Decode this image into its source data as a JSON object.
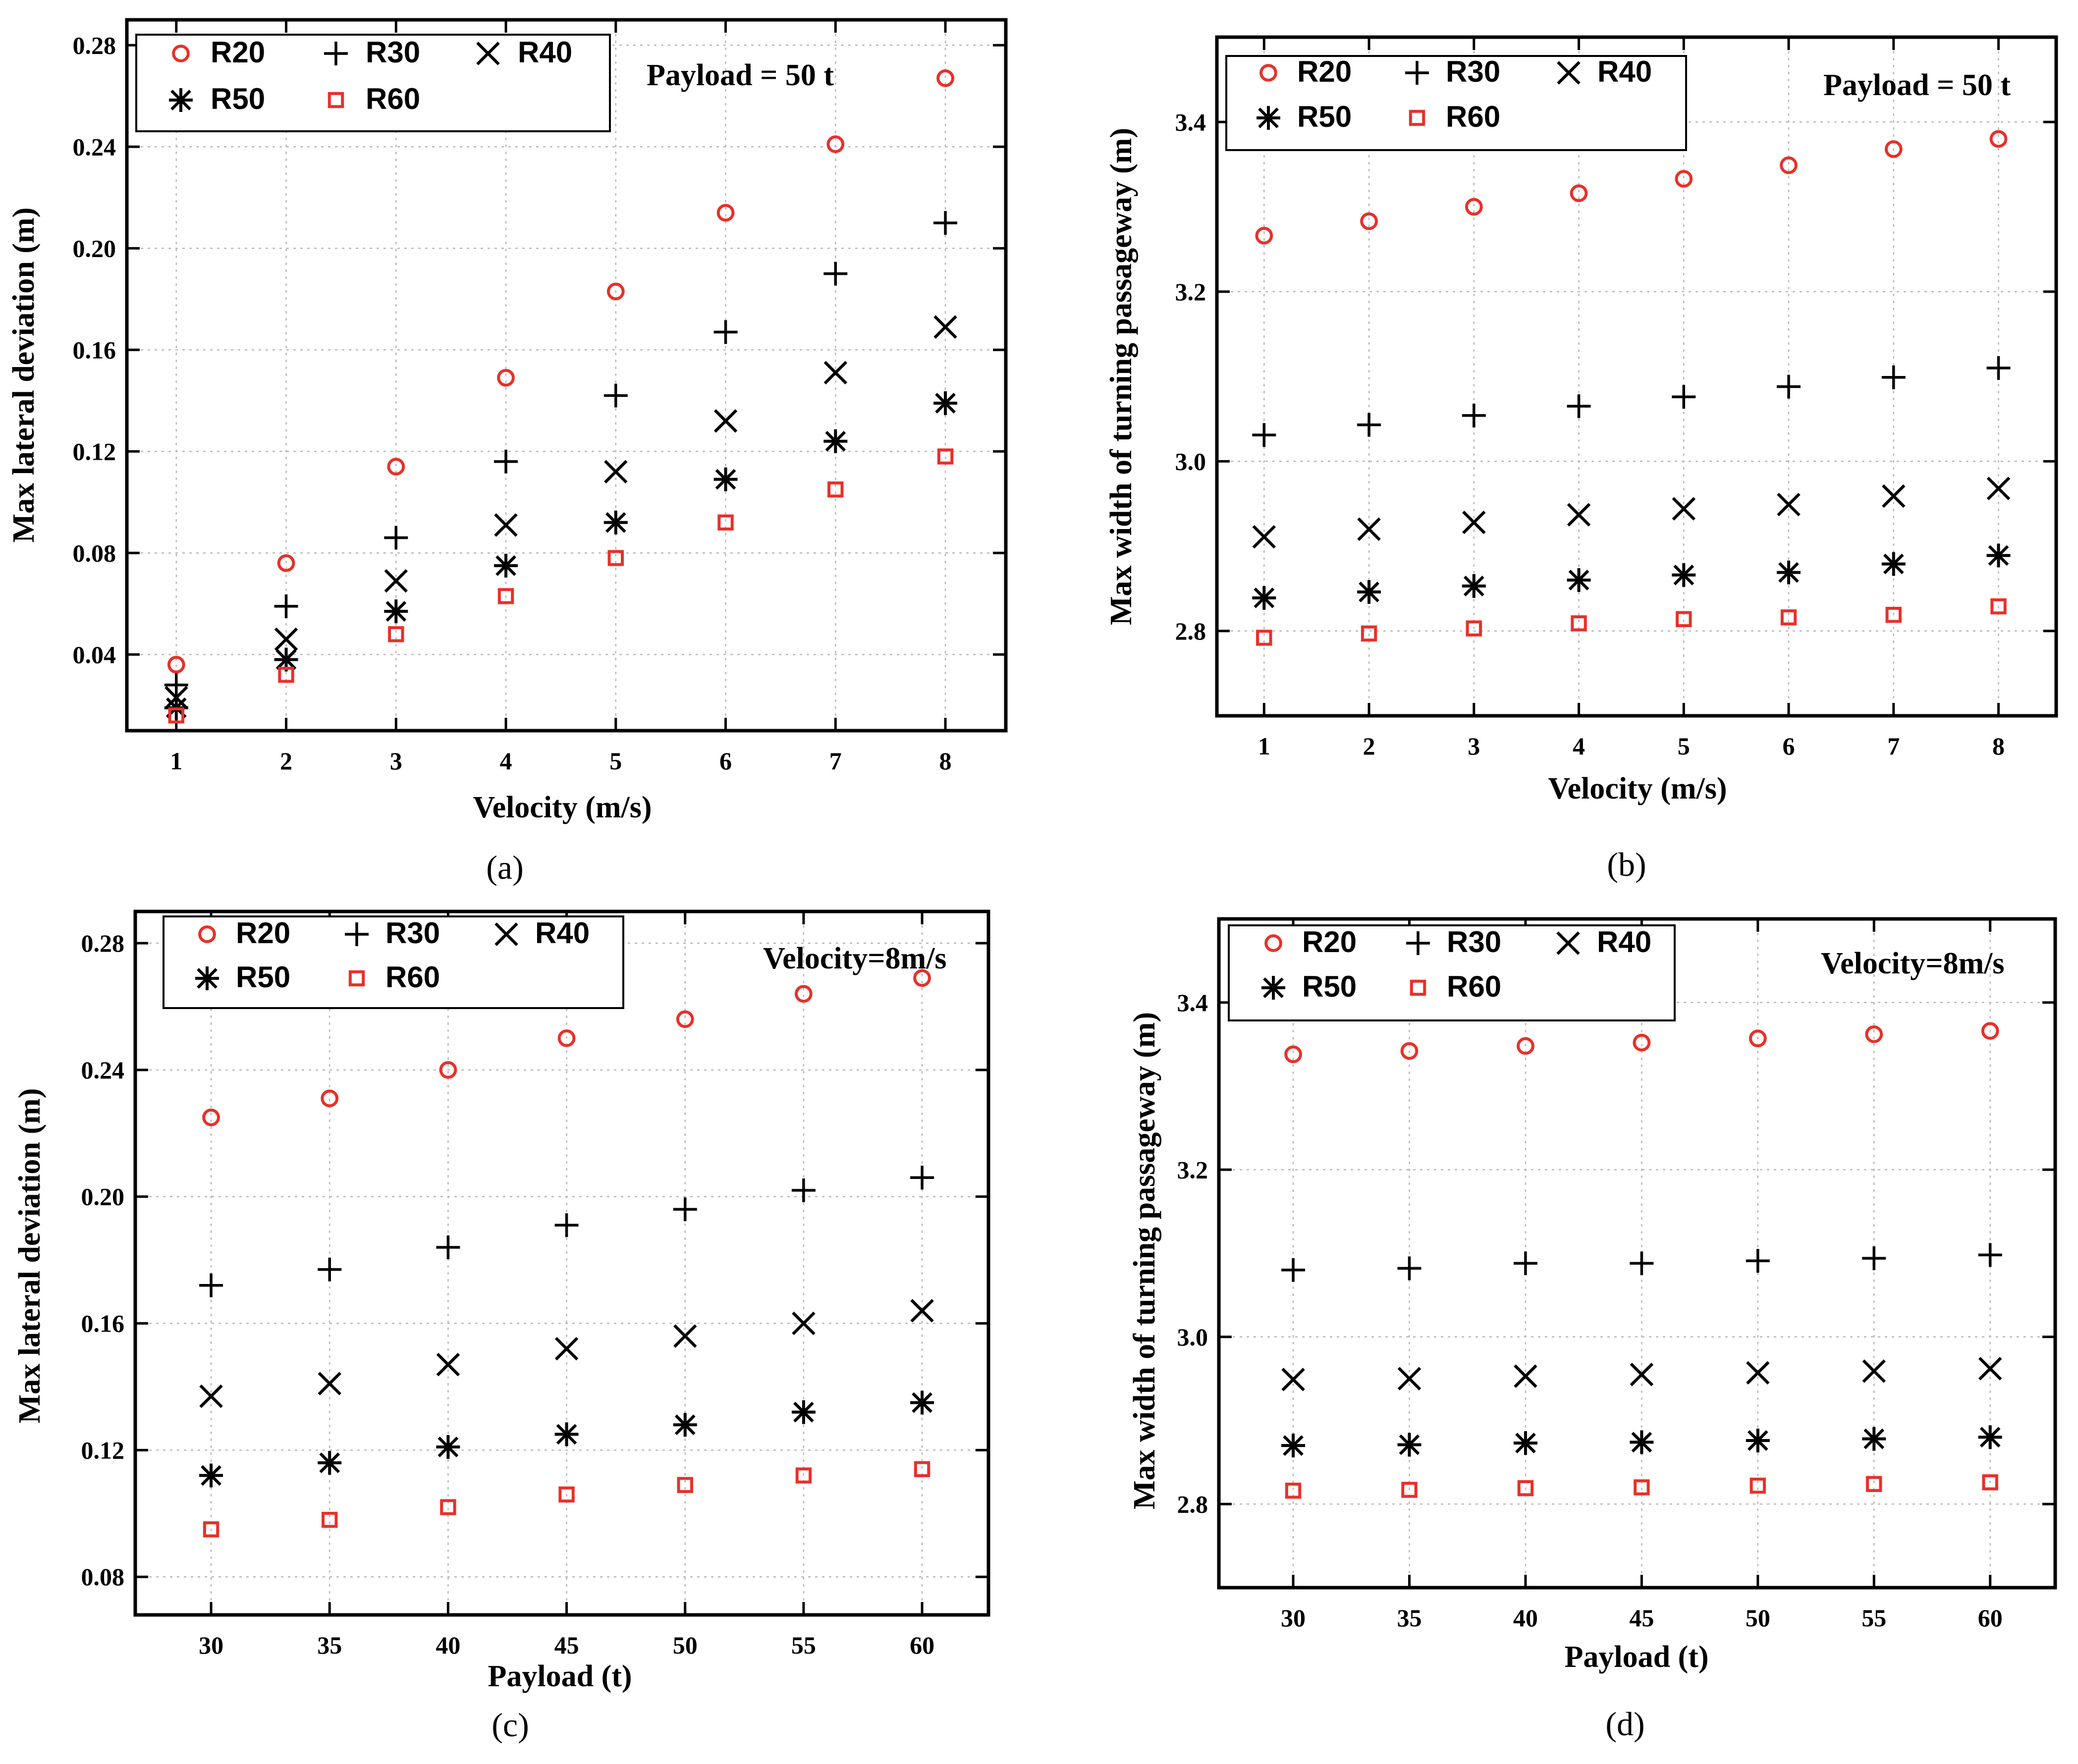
{
  "chart_data": [
    {
      "id": "a",
      "type": "scatter",
      "panel_label": "(a)",
      "xlabel": "Velocity (m/s)",
      "ylabel": "Max lateral deviation (m)",
      "annotation": "Payload = 50 t",
      "xlim": [
        0.55,
        8.55
      ],
      "ylim": [
        0.01,
        0.29
      ],
      "xticks": [
        1,
        2,
        3,
        4,
        5,
        6,
        7,
        8
      ],
      "xtick_labels": [
        "1",
        "2",
        "3",
        "4",
        "5",
        "6",
        "7",
        "8"
      ],
      "yticks": [
        0.04,
        0.08,
        0.12,
        0.16,
        0.2,
        0.24,
        0.28
      ],
      "ytick_labels": [
        "0.04",
        "0.08",
        "0.12",
        "0.16",
        "0.20",
        "0.24",
        "0.28"
      ],
      "grid": true,
      "legend_position": "top-left",
      "x": [
        1,
        2,
        3,
        4,
        5,
        6,
        7,
        8
      ],
      "series": [
        {
          "name": "R20",
          "marker": "circle",
          "color": "#e8302a",
          "values": [
            0.036,
            0.076,
            0.114,
            0.149,
            0.183,
            0.214,
            0.241,
            0.267
          ]
        },
        {
          "name": "R30",
          "marker": "plus",
          "color": "#000000",
          "values": [
            0.028,
            0.059,
            0.086,
            0.116,
            0.142,
            0.167,
            0.19,
            0.21
          ]
        },
        {
          "name": "R40",
          "marker": "cross",
          "color": "#000000",
          "values": [
            0.023,
            0.046,
            0.069,
            0.091,
            0.112,
            0.132,
            0.151,
            0.169
          ]
        },
        {
          "name": "R50",
          "marker": "star",
          "color": "#000000",
          "values": [
            0.019,
            0.038,
            0.057,
            0.075,
            0.092,
            0.109,
            0.124,
            0.139
          ]
        },
        {
          "name": "R60",
          "marker": "square",
          "color": "#e8302a",
          "values": [
            0.016,
            0.032,
            0.048,
            0.063,
            0.078,
            0.092,
            0.105,
            0.118
          ]
        }
      ]
    },
    {
      "id": "b",
      "type": "scatter",
      "panel_label": "(b)",
      "xlabel": "Velocity (m/s)",
      "ylabel": "Max width of turning passageway (m)",
      "annotation": "Payload = 50 t",
      "xlim": [
        0.55,
        8.55
      ],
      "ylim": [
        2.7,
        3.5
      ],
      "xticks": [
        1,
        2,
        3,
        4,
        5,
        6,
        7,
        8
      ],
      "xtick_labels": [
        "1",
        "2",
        "3",
        "4",
        "5",
        "6",
        "7",
        "8"
      ],
      "yticks": [
        2.8,
        3.0,
        3.2,
        3.4
      ],
      "ytick_labels": [
        "2.8",
        "3.0",
        "3.2",
        "3.4"
      ],
      "grid": true,
      "legend_position": "top-left",
      "x": [
        1,
        2,
        3,
        4,
        5,
        6,
        7,
        8
      ],
      "series": [
        {
          "name": "R20",
          "marker": "circle",
          "color": "#e8302a",
          "values": [
            3.266,
            3.283,
            3.3,
            3.316,
            3.333,
            3.349,
            3.368,
            3.38
          ]
        },
        {
          "name": "R30",
          "marker": "plus",
          "color": "#000000",
          "values": [
            3.031,
            3.043,
            3.054,
            3.065,
            3.076,
            3.088,
            3.099,
            3.11
          ]
        },
        {
          "name": "R40",
          "marker": "cross",
          "color": "#000000",
          "values": [
            2.911,
            2.92,
            2.928,
            2.937,
            2.944,
            2.949,
            2.959,
            2.968
          ]
        },
        {
          "name": "R50",
          "marker": "star",
          "color": "#000000",
          "values": [
            2.839,
            2.846,
            2.853,
            2.86,
            2.866,
            2.869,
            2.879,
            2.889
          ]
        },
        {
          "name": "R60",
          "marker": "square",
          "color": "#e8302a",
          "values": [
            2.792,
            2.797,
            2.803,
            2.809,
            2.814,
            2.816,
            2.819,
            2.829
          ]
        }
      ]
    },
    {
      "id": "c",
      "type": "scatter",
      "panel_label": "(c)",
      "xlabel": "Payload (t)",
      "ylabel": "Max lateral deviation (m)",
      "annotation": "Velocity=8m/s",
      "xlim": [
        26.8,
        62.8
      ],
      "ylim": [
        0.068,
        0.29
      ],
      "xticks": [
        30,
        35,
        40,
        45,
        50,
        55,
        60
      ],
      "xtick_labels": [
        "30",
        "35",
        "40",
        "45",
        "50",
        "55",
        "60"
      ],
      "yticks": [
        0.08,
        0.12,
        0.16,
        0.2,
        0.24,
        0.28
      ],
      "ytick_labels": [
        "0.08",
        "0.12",
        "0.16",
        "0.20",
        "0.24",
        "0.28"
      ],
      "grid": true,
      "legend_position": "top-left",
      "x": [
        30,
        35,
        40,
        45,
        50,
        55,
        60
      ],
      "series": [
        {
          "name": "R20",
          "marker": "circle",
          "color": "#e8302a",
          "values": [
            0.225,
            0.231,
            0.24,
            0.25,
            0.256,
            0.264,
            0.269
          ]
        },
        {
          "name": "R30",
          "marker": "plus",
          "color": "#000000",
          "values": [
            0.172,
            0.177,
            0.184,
            0.191,
            0.196,
            0.202,
            0.206
          ]
        },
        {
          "name": "R40",
          "marker": "cross",
          "color": "#000000",
          "values": [
            0.137,
            0.141,
            0.147,
            0.152,
            0.156,
            0.16,
            0.164
          ]
        },
        {
          "name": "R50",
          "marker": "star",
          "color": "#000000",
          "values": [
            0.112,
            0.116,
            0.121,
            0.125,
            0.128,
            0.132,
            0.135
          ]
        },
        {
          "name": "R60",
          "marker": "square",
          "color": "#e8302a",
          "values": [
            0.095,
            0.098,
            0.102,
            0.106,
            0.109,
            0.112,
            0.114
          ]
        }
      ]
    },
    {
      "id": "d",
      "type": "scatter",
      "panel_label": "(d)",
      "xlabel": "Payload (t)",
      "ylabel": "Max width of turning passageway (m)",
      "annotation": "Velocity=8m/s",
      "xlim": [
        26.8,
        62.8
      ],
      "ylim": [
        2.7,
        3.5
      ],
      "xticks": [
        30,
        35,
        40,
        45,
        50,
        55,
        60
      ],
      "xtick_labels": [
        "30",
        "35",
        "40",
        "45",
        "50",
        "55",
        "60"
      ],
      "yticks": [
        2.8,
        3.0,
        3.2,
        3.4
      ],
      "ytick_labels": [
        "2.8",
        "3.0",
        "3.2",
        "3.4"
      ],
      "grid": true,
      "legend_position": "top-left",
      "x": [
        30,
        35,
        40,
        45,
        50,
        55,
        60
      ],
      "series": [
        {
          "name": "R20",
          "marker": "circle",
          "color": "#e8302a",
          "values": [
            3.338,
            3.342,
            3.348,
            3.352,
            3.357,
            3.362,
            3.366
          ]
        },
        {
          "name": "R30",
          "marker": "plus",
          "color": "#000000",
          "values": [
            3.08,
            3.082,
            3.088,
            3.088,
            3.091,
            3.094,
            3.098
          ]
        },
        {
          "name": "R40",
          "marker": "cross",
          "color": "#000000",
          "values": [
            2.949,
            2.95,
            2.953,
            2.955,
            2.957,
            2.959,
            2.962
          ]
        },
        {
          "name": "R50",
          "marker": "star",
          "color": "#000000",
          "values": [
            2.87,
            2.871,
            2.873,
            2.874,
            2.876,
            2.878,
            2.88
          ]
        },
        {
          "name": "R60",
          "marker": "square",
          "color": "#e8302a",
          "values": [
            2.816,
            2.817,
            2.819,
            2.82,
            2.822,
            2.824,
            2.826
          ]
        }
      ]
    }
  ]
}
